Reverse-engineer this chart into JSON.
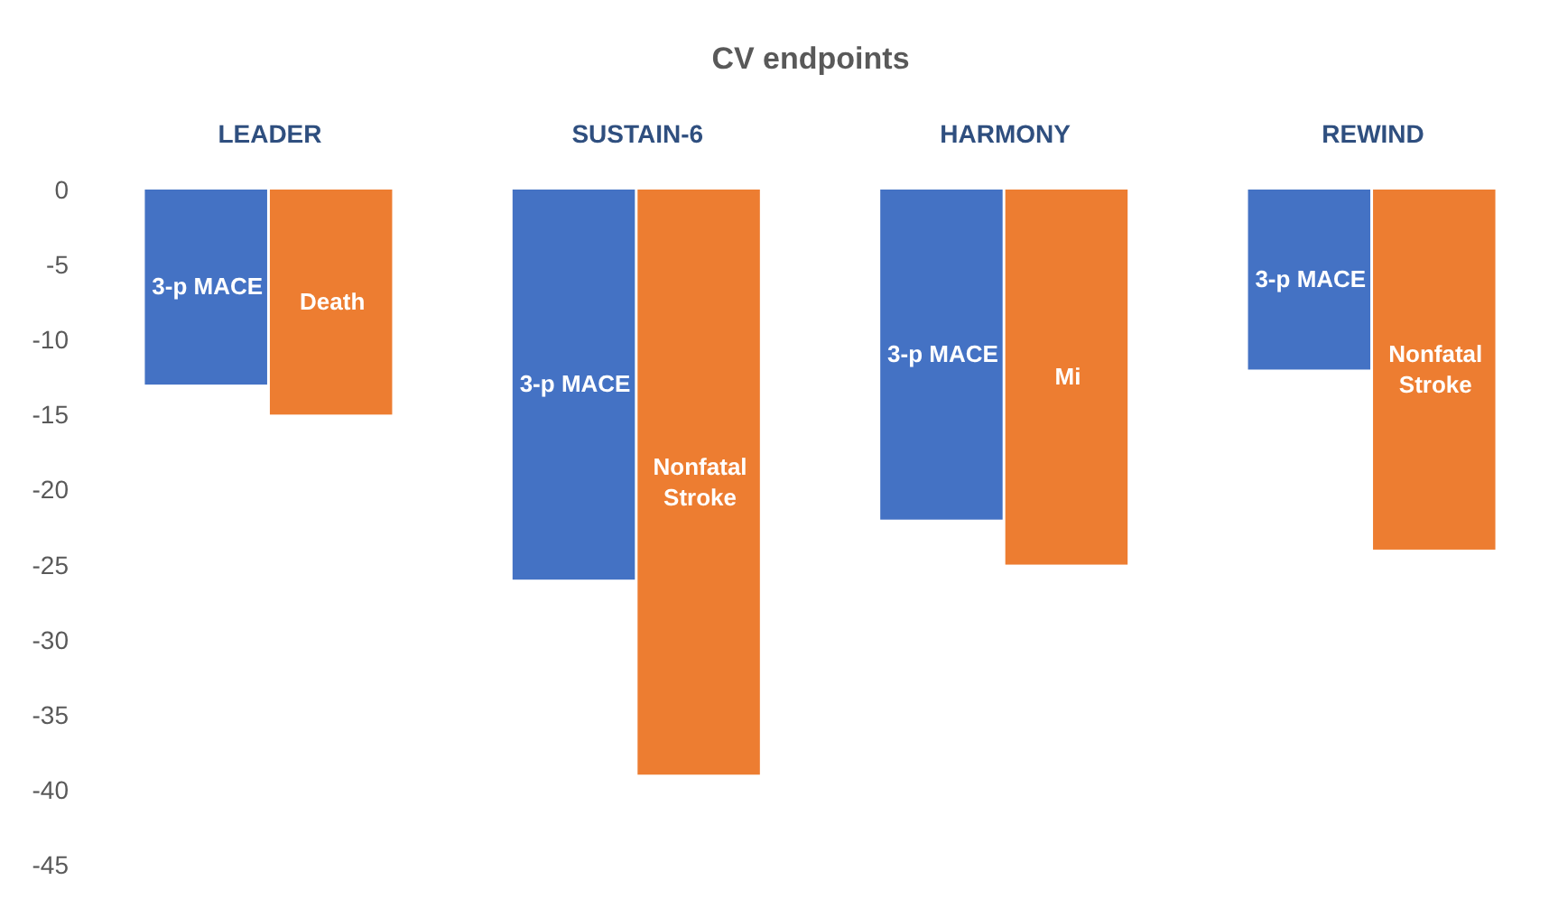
{
  "chart_data": {
    "type": "bar",
    "title": "CV endpoints",
    "categories": [
      "LEADER",
      "SUSTAIN-6",
      "HARMONY",
      "REWIND"
    ],
    "series": [
      {
        "name": "3-p MACE",
        "color": "#4472c4",
        "values": [
          -13,
          -26,
          -22,
          -12
        ]
      },
      {
        "name": "Death",
        "color": "#ed7d31",
        "values": [
          -15,
          null,
          null,
          null
        ]
      },
      {
        "name": "Nonfatal Stroke",
        "color": "#ed7d31",
        "values": [
          null,
          -39,
          null,
          -24
        ]
      },
      {
        "name": "Mi",
        "color": "#ed7d31",
        "values": [
          null,
          null,
          -25,
          null
        ]
      }
    ],
    "ylim": [
      -45,
      0
    ],
    "yticks": [
      0,
      -5,
      -10,
      -15,
      -20,
      -25,
      -30,
      -35,
      -40,
      -45
    ],
    "grid": false
  }
}
